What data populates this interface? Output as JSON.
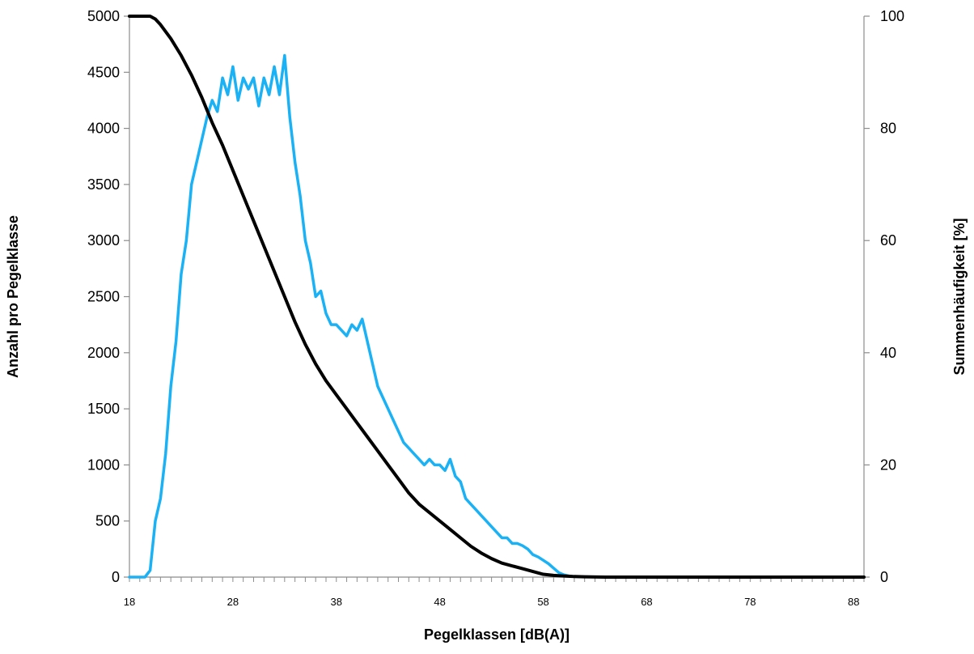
{
  "chart_data": {
    "type": "line",
    "title": "",
    "xlabel": "Pegelklassen [dB(A)]",
    "ylabel": "Anzahl pro Pegelklasse",
    "y2label": "Summenhäufigkeit [%]",
    "xlim": [
      18,
      89
    ],
    "ylim": [
      0,
      5000
    ],
    "y2lim": [
      0,
      100
    ],
    "x_ticks": [
      18,
      28,
      38,
      48,
      58,
      68,
      78,
      88
    ],
    "y_ticks": [
      0,
      500,
      1000,
      1500,
      2000,
      2500,
      3000,
      3500,
      4000,
      4500,
      5000
    ],
    "y2_ticks": [
      0,
      20,
      40,
      60,
      80,
      100
    ],
    "grid": false,
    "legend": "none",
    "series": [
      {
        "axis": "left",
        "color": "#1ab2f5",
        "x": [
          18,
          19,
          19.5,
          20,
          20.5,
          21,
          21.5,
          22,
          22.5,
          23,
          23.5,
          24,
          24.5,
          25,
          25.5,
          26,
          26.5,
          27,
          27.5,
          28,
          28.5,
          29,
          29.5,
          30,
          30.5,
          31,
          31.5,
          32,
          32.5,
          33,
          33.5,
          34,
          34.5,
          35,
          35.5,
          36,
          36.5,
          37,
          37.5,
          38,
          38.5,
          39,
          39.5,
          40,
          40.5,
          41,
          41.5,
          42,
          42.5,
          43,
          43.5,
          44,
          44.5,
          45,
          45.5,
          46,
          46.5,
          47,
          47.5,
          48,
          48.5,
          49,
          49.5,
          50,
          50.5,
          51,
          51.5,
          52,
          52.5,
          53,
          53.5,
          54,
          54.5,
          55,
          55.5,
          56,
          56.5,
          57,
          57.5,
          58,
          58.5,
          59,
          59.5,
          60,
          60.5,
          61,
          62,
          63,
          64,
          65,
          70,
          80,
          89
        ],
        "y": [
          0,
          0,
          0,
          60,
          500,
          700,
          1100,
          1700,
          2100,
          2700,
          3000,
          3500,
          3700,
          3900,
          4100,
          4250,
          4150,
          4450,
          4300,
          4550,
          4250,
          4450,
          4350,
          4450,
          4200,
          4450,
          4300,
          4550,
          4300,
          4650,
          4100,
          3700,
          3400,
          3000,
          2800,
          2500,
          2550,
          2350,
          2250,
          2250,
          2200,
          2150,
          2250,
          2200,
          2300,
          2100,
          1900,
          1700,
          1600,
          1500,
          1400,
          1300,
          1200,
          1150,
          1100,
          1050,
          1000,
          1050,
          1000,
          1000,
          950,
          1050,
          900,
          850,
          700,
          650,
          600,
          550,
          500,
          450,
          400,
          350,
          350,
          300,
          300,
          280,
          250,
          200,
          180,
          150,
          120,
          80,
          40,
          20,
          10,
          5,
          3,
          2,
          1,
          0,
          0,
          0,
          0
        ]
      },
      {
        "axis": "right",
        "color": "#000000",
        "x": [
          18,
          19,
          20,
          20.5,
          21,
          22,
          23,
          24,
          25,
          26,
          27,
          28,
          29,
          30,
          31,
          32,
          33,
          34,
          35,
          36,
          37,
          38,
          39,
          40,
          41,
          42,
          43,
          44,
          45,
          46,
          47,
          48,
          49,
          50,
          51,
          52,
          53,
          54,
          55,
          56,
          57,
          58,
          59,
          60,
          61,
          62,
          64,
          70,
          80,
          89
        ],
        "y": [
          100,
          100,
          100,
          99.5,
          98.5,
          96,
          93,
          89.5,
          85.5,
          81,
          77,
          72.5,
          68,
          63.5,
          59,
          54.5,
          50,
          45.5,
          41.5,
          38,
          35,
          32.5,
          30,
          27.5,
          25,
          22.5,
          20,
          17.5,
          15,
          13,
          11.5,
          10,
          8.5,
          7,
          5.5,
          4.3,
          3.3,
          2.5,
          2,
          1.5,
          1,
          0.5,
          0.3,
          0.2,
          0.1,
          0.05,
          0,
          0,
          0,
          0
        ]
      }
    ]
  }
}
